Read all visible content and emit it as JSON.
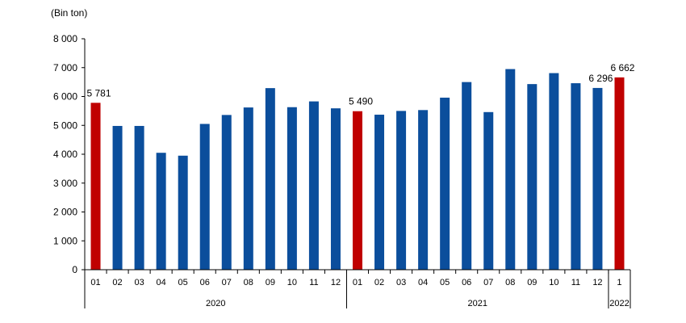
{
  "chart_data": {
    "type": "bar",
    "ylabel": "(Bin ton)",
    "ylim": [
      0,
      8000
    ],
    "yticks": [
      "0",
      "1 000",
      "2 000",
      "3 000",
      "4 000",
      "5 000",
      "6 000",
      "7 000",
      "8 000"
    ],
    "categories": [
      "01",
      "02",
      "03",
      "04",
      "05",
      "06",
      "07",
      "08",
      "09",
      "10",
      "11",
      "12",
      "01",
      "02",
      "03",
      "04",
      "05",
      "06",
      "07",
      "08",
      "09",
      "10",
      "11",
      "12",
      "1"
    ],
    "values": [
      5781,
      4980,
      4980,
      4050,
      3950,
      5050,
      5360,
      5620,
      6290,
      5630,
      5830,
      5590,
      5490,
      5370,
      5500,
      5530,
      5960,
      6500,
      5460,
      6950,
      6430,
      6810,
      6460,
      6296,
      6662
    ],
    "highlighted": [
      0,
      12,
      24
    ],
    "year_groups": [
      {
        "label": "2020",
        "start": 0,
        "end": 11
      },
      {
        "label": "2021",
        "start": 12,
        "end": 23
      },
      {
        "label": "2022",
        "start": 24,
        "end": 24
      }
    ],
    "data_labels": [
      {
        "index": 0,
        "text": "5 781"
      },
      {
        "index": 12,
        "text": "5 490"
      },
      {
        "index": 23,
        "text": "6 296"
      },
      {
        "index": 24,
        "text": "6 662"
      }
    ],
    "colors": {
      "normal": "#0b4e9c",
      "highlight": "#c00000"
    }
  }
}
